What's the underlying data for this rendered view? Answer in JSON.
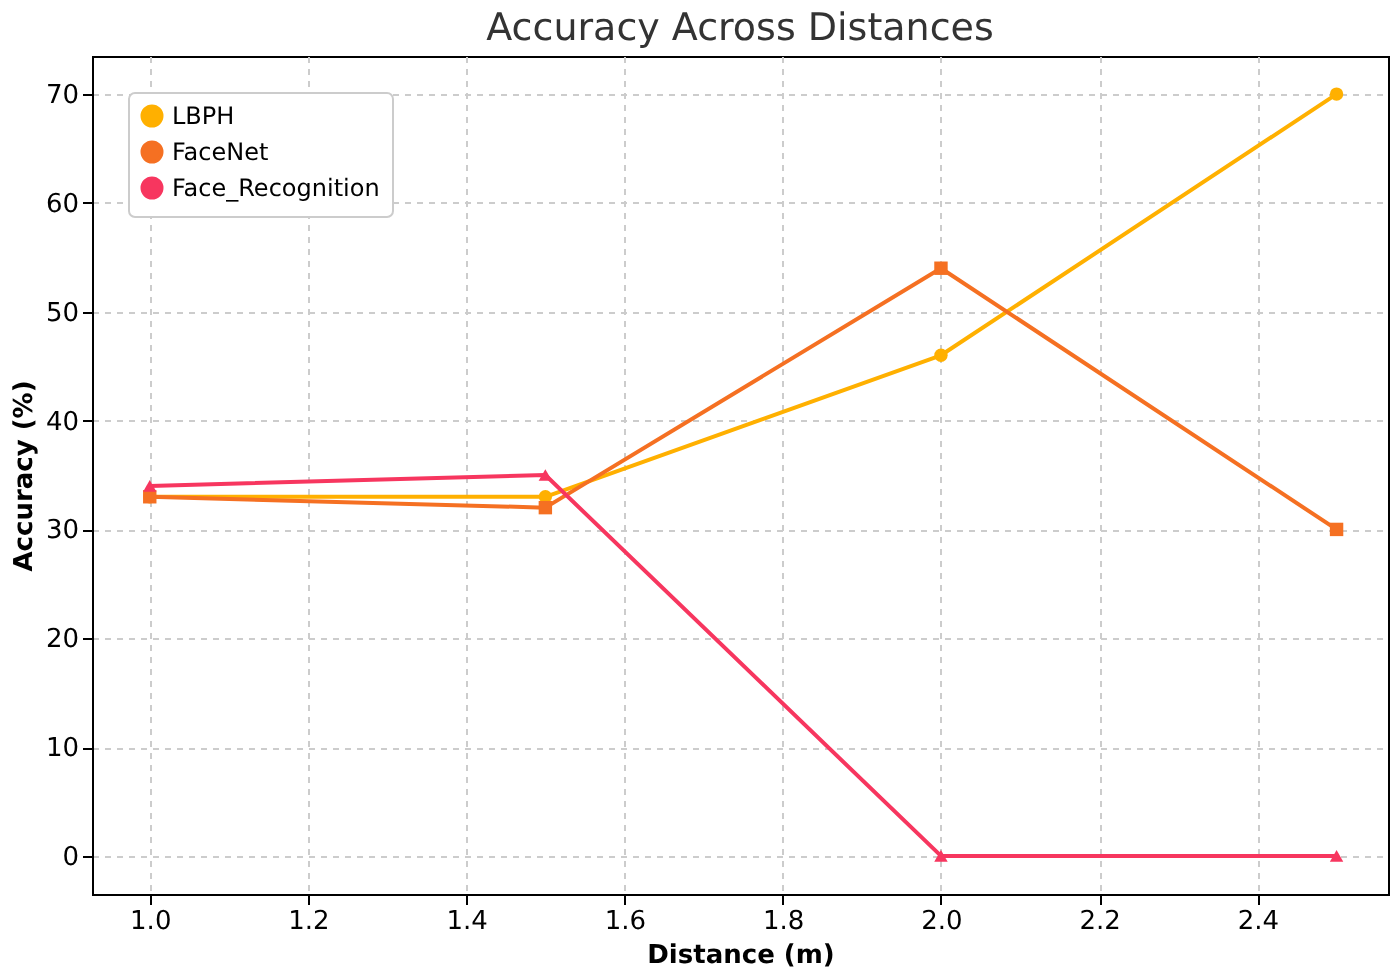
{
  "chart_data": {
    "type": "line",
    "title": "Accuracy Across Distances",
    "xlabel": "Distance (m)",
    "ylabel": "Accuracy (%)",
    "x": [
      1.0,
      1.5,
      2.0,
      2.5
    ],
    "series": [
      {
        "name": "LBPH",
        "color": "#ffb000",
        "marker": "circle",
        "values": [
          33,
          33,
          46,
          70
        ]
      },
      {
        "name": "FaceNet",
        "color": "#f57022",
        "marker": "square",
        "values": [
          33,
          32,
          54,
          30
        ]
      },
      {
        "name": "Face_Recognition",
        "color": "#f7365f",
        "marker": "triangle",
        "values": [
          34,
          35,
          0,
          0
        ]
      }
    ],
    "xlim": [
      0.927,
      2.565
    ],
    "xticks": [
      {
        "value": 1.0,
        "label": "1.0"
      },
      {
        "value": 1.2,
        "label": "1.2"
      },
      {
        "value": 1.4,
        "label": "1.4"
      },
      {
        "value": 1.6,
        "label": "1.6"
      },
      {
        "value": 1.8,
        "label": "1.8"
      },
      {
        "value": 2.0,
        "label": "2.0"
      },
      {
        "value": 2.2,
        "label": "2.2"
      },
      {
        "value": 2.4,
        "label": "2.4"
      }
    ],
    "ylim": [
      -3.5,
      73.5
    ],
    "yticks": [
      0,
      10,
      20,
      30,
      40,
      50,
      60,
      70
    ],
    "grid": true,
    "legend": "top left",
    "line_style": "solid"
  }
}
